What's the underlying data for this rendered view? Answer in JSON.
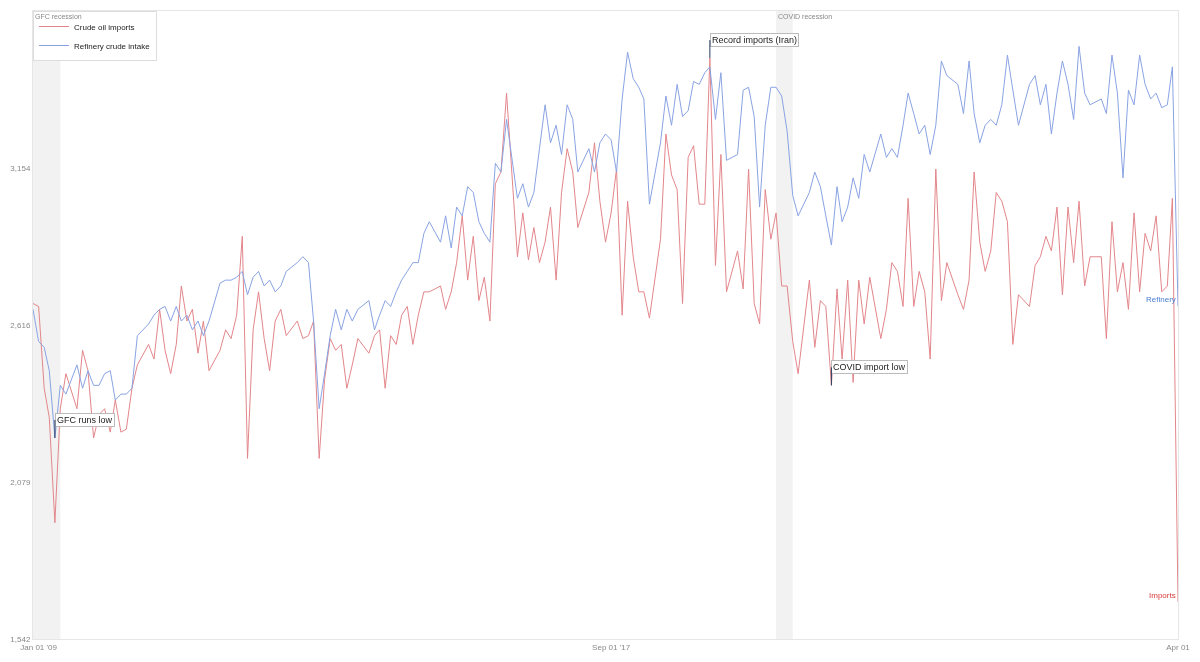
{
  "chart_data": {
    "type": "line",
    "x": [
      "2008-12",
      "2009-01",
      "2009-02",
      "2009-03",
      "2009-04",
      "2009-05",
      "2009-06",
      "2009-08",
      "2009-09",
      "2009-10",
      "2009-11",
      "2009-12",
      "2010-01",
      "2010-02",
      "2010-03",
      "2010-04",
      "2010-05",
      "2010-06",
      "2010-07",
      "2010-09",
      "2010-10",
      "2010-11",
      "2010-12",
      "2011-01",
      "2011-02",
      "2011-03",
      "2011-04",
      "2011-05",
      "2011-06",
      "2011-07",
      "2011-08",
      "2011-10",
      "2011-11",
      "2011-12",
      "2012-01",
      "2012-02",
      "2012-03",
      "2012-04",
      "2012-05",
      "2012-06",
      "2012-07",
      "2012-08",
      "2012-09",
      "2012-10",
      "2012-12",
      "2013-01",
      "2013-02",
      "2013-03",
      "2013-04",
      "2013-05",
      "2013-06",
      "2013-07",
      "2013-08",
      "2013-09",
      "2013-10",
      "2013-11",
      "2014-01",
      "2014-02",
      "2014-03",
      "2014-04",
      "2014-05",
      "2014-06",
      "2014-07",
      "2014-08",
      "2014-09",
      "2014-10",
      "2014-11",
      "2014-12",
      "2015-02",
      "2015-03",
      "2015-04",
      "2015-05",
      "2015-06",
      "2015-07",
      "2015-08",
      "2015-09",
      "2015-10",
      "2015-11",
      "2015-12",
      "2016-01",
      "2016-02",
      "2016-04",
      "2016-05",
      "2016-06",
      "2016-07",
      "2016-08",
      "2016-09",
      "2016-10",
      "2016-11",
      "2016-12",
      "2017-01",
      "2017-02",
      "2017-03",
      "2017-05",
      "2017-06",
      "2017-07",
      "2017-08",
      "2017-09",
      "2017-10",
      "2017-11",
      "2017-12",
      "2018-01",
      "2018-02",
      "2018-03",
      "2018-04",
      "2018-06",
      "2018-07",
      "2018-08",
      "2018-09",
      "2018-10",
      "2018-11",
      "2018-12",
      "2019-01",
      "2019-02",
      "2019-03",
      "2019-04",
      "2019-05",
      "2019-06",
      "2019-08",
      "2019-09",
      "2019-10",
      "2019-11",
      "2019-12",
      "2020-01",
      "2020-02",
      "2020-03",
      "2020-04",
      "2020-05",
      "2020-06",
      "2020-07",
      "2020-09",
      "2020-10",
      "2020-11",
      "2020-12",
      "2021-01",
      "2021-02",
      "2021-03",
      "2021-04",
      "2021-05",
      "2021-06",
      "2021-07",
      "2021-08",
      "2021-10",
      "2021-11",
      "2021-12",
      "2022-01",
      "2022-02",
      "2022-03",
      "2022-04",
      "2022-05",
      "2022-06",
      "2022-07",
      "2022-08",
      "2022-09",
      "2022-10",
      "2022-12",
      "2023-01",
      "2023-02",
      "2023-03",
      "2023-04",
      "2023-05",
      "2023-06",
      "2023-07",
      "2023-08",
      "2023-09",
      "2023-10",
      "2023-11",
      "2024-01",
      "2024-02",
      "2024-03",
      "2024-04",
      "2024-05",
      "2024-06",
      "2024-07",
      "2024-08",
      "2024-09",
      "2024-10",
      "2024-11",
      "2024-12",
      "2025-02",
      "2025-03",
      "2025-04",
      "2025-05",
      "2025-06",
      "2025-07",
      "2025-08",
      "2025-09",
      "2025-10",
      "2025-11",
      "2025-12",
      "2026-01",
      "2026-02",
      "2026-03",
      "2026-04"
    ],
    "series": [
      {
        "name": "Crude oil imports",
        "color": "#e3868b",
        "values": [
          2690,
          2680,
          2400,
          2300,
          1940,
          2330,
          2450,
          2330,
          2530,
          2460,
          2230,
          2310,
          2330,
          2250,
          2360,
          2250,
          2260,
          2400,
          2480,
          2550,
          2500,
          2670,
          2530,
          2450,
          2550,
          2750,
          2630,
          2670,
          2520,
          2630,
          2460,
          2530,
          2600,
          2570,
          2650,
          2920,
          2160,
          2600,
          2730,
          2570,
          2460,
          2630,
          2670,
          2580,
          2630,
          2570,
          2580,
          2630,
          2160,
          2430,
          2570,
          2530,
          2550,
          2400,
          2480,
          2570,
          2520,
          2580,
          2600,
          2400,
          2580,
          2550,
          2650,
          2680,
          2550,
          2650,
          2730,
          2730,
          2750,
          2670,
          2730,
          2830,
          2990,
          2770,
          2920,
          2700,
          2780,
          2630,
          3100,
          3140,
          3410,
          2850,
          3000,
          2840,
          2950,
          2830,
          2900,
          3020,
          2770,
          3070,
          3220,
          3140,
          2950,
          3070,
          3240,
          3040,
          2900,
          3000,
          3150,
          2650,
          3040,
          2850,
          2730,
          2730,
          2640,
          2910,
          3270,
          3130,
          3080,
          2690,
          3190,
          3230,
          3030,
          3030,
          3530,
          2820,
          3200,
          2730,
          2870,
          2740,
          3150,
          2690,
          2620,
          3080,
          2910,
          3000,
          2750,
          2750,
          2560,
          2450,
          2770,
          2540,
          2700,
          2680,
          2410,
          2740,
          2500,
          2770,
          2420,
          2770,
          2620,
          2780,
          2570,
          2670,
          2830,
          2800,
          2680,
          3050,
          2680,
          2800,
          2730,
          2500,
          3150,
          2700,
          2830,
          2720,
          2670,
          2770,
          3140,
          2900,
          2800,
          2870,
          3070,
          3040,
          2970,
          2550,
          2720,
          2680,
          2820,
          2850,
          2920,
          2870,
          3020,
          2720,
          3020,
          2830,
          3040,
          2750,
          2850,
          2850,
          2570,
          2970,
          2730,
          2830,
          2670,
          3000,
          2730,
          2930,
          2870,
          2990,
          2730,
          2750,
          3050,
          1670
        ]
      },
      {
        "name": "Refinery crude intake",
        "color": "#89a3e3",
        "values": [
          2670,
          2560,
          2540,
          2460,
          2230,
          2410,
          2380,
          2480,
          2400,
          2460,
          2410,
          2410,
          2450,
          2460,
          2360,
          2380,
          2380,
          2400,
          2580,
          2620,
          2650,
          2670,
          2680,
          2630,
          2680,
          2630,
          2650,
          2600,
          2630,
          2580,
          2630,
          2760,
          2770,
          2770,
          2780,
          2800,
          2720,
          2780,
          2800,
          2750,
          2770,
          2730,
          2750,
          2800,
          2830,
          2850,
          2830,
          2630,
          2330,
          2450,
          2580,
          2670,
          2600,
          2670,
          2630,
          2670,
          2700,
          2600,
          2650,
          2700,
          2680,
          2730,
          2770,
          2800,
          2830,
          2830,
          2930,
          2970,
          2900,
          2990,
          2880,
          3020,
          2990,
          3090,
          3070,
          2970,
          2930,
          2900,
          3170,
          3140,
          3320,
          3050,
          3100,
          3020,
          3070,
          3220,
          3370,
          3240,
          3300,
          3200,
          3370,
          3320,
          3140,
          3220,
          3140,
          3240,
          3270,
          3250,
          3140,
          3390,
          3550,
          3460,
          3430,
          3390,
          3030,
          3240,
          3400,
          3300,
          3440,
          3330,
          3350,
          3450,
          3440,
          3480,
          3500,
          3320,
          3480,
          3180,
          3200,
          3420,
          3430,
          3330,
          3020,
          3300,
          3430,
          3430,
          3400,
          3280,
          3060,
          2990,
          3070,
          3140,
          3090,
          2990,
          2890,
          3090,
          2970,
          3020,
          3120,
          3050,
          3200,
          3140,
          3270,
          3190,
          3220,
          3190,
          3300,
          3410,
          3340,
          3270,
          3300,
          3200,
          3300,
          3520,
          3470,
          3440,
          3340,
          3520,
          3340,
          3240,
          3300,
          3320,
          3300,
          3370,
          3540,
          3420,
          3300,
          3440,
          3470,
          3370,
          3440,
          3270,
          3410,
          3520,
          3440,
          3320,
          3570,
          3410,
          3370,
          3390,
          3340,
          3540,
          3410,
          3120,
          3420,
          3370,
          3540,
          3440,
          3390,
          3410,
          3360,
          3370,
          3500,
          2680
        ]
      }
    ],
    "xlim": [
      "2008-12",
      "2026-04"
    ],
    "xticks": [
      {
        "value": "2009-01-01",
        "label": "Jan 01 '09"
      },
      {
        "value": "2017-09-01",
        "label": "Sep 01 '17"
      },
      {
        "value": "2026-04-01",
        "label": "Apr 01"
      }
    ],
    "ylim": [
      1542,
      3691
    ],
    "yticks": [
      {
        "value": 1542,
        "label": "1,542"
      },
      {
        "value": 2079,
        "label": "2,079"
      },
      {
        "value": 2616,
        "label": "2,616"
      },
      {
        "value": 3154,
        "label": "3,154"
      }
    ],
    "bands": [
      {
        "axis": "x",
        "from": "2008-12",
        "to": "2009-05",
        "label": "GFC recession",
        "color": "#f2f2f2"
      },
      {
        "axis": "x",
        "from": "2020-03",
        "to": "2020-06",
        "label": "COVID recession",
        "color": "#f2f2f2"
      }
    ],
    "annotations": [
      {
        "text": "GFC runs low",
        "x": "2009-04",
        "y": 2230
      },
      {
        "text": "Record imports (Iran)",
        "x": "2019-03",
        "y": 3530
      },
      {
        "text": "COVID import low",
        "x": "2021-01",
        "y": 2410
      },
      {
        "text": "Refinery",
        "x": "2026-04",
        "y": 2680
      },
      {
        "text": "Imports",
        "x": "2026-04",
        "y": 1670
      }
    ],
    "grid": false,
    "legend": "top left",
    "marker": "none",
    "line_style": "solid"
  }
}
